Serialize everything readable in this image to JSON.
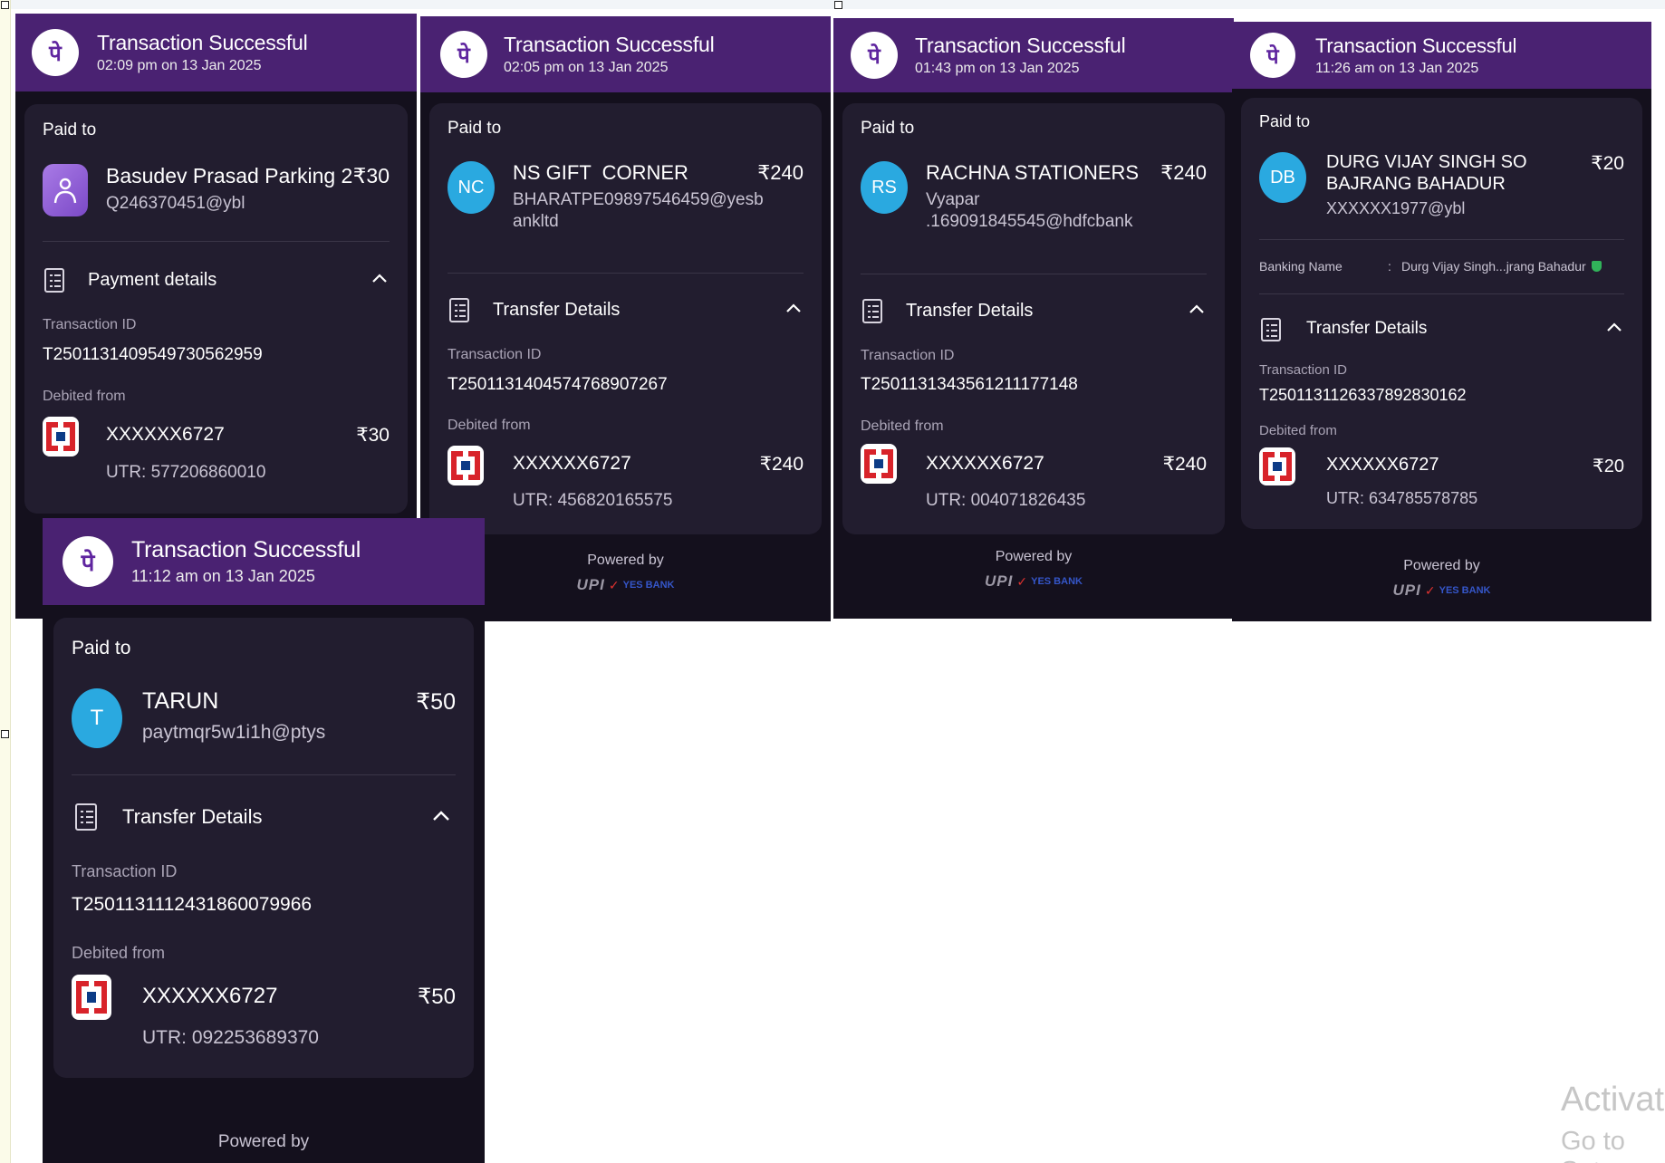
{
  "logo_glyph": "पे",
  "currency": "₹",
  "brand_colors": {
    "header": "#4a2272",
    "panel": "#14101d",
    "card": "#221d2f",
    "avatar_blue": "#2aa9e0"
  },
  "panels": [
    {
      "title": "Transaction Successful",
      "time": "02:09 pm on 13 Jan 2025",
      "paid_to_label": "Paid to",
      "payee_name": "Basudev Prasad Parking 2",
      "payee_id": "Q246370451@ybl",
      "amount": "₹30",
      "avatar_icon": "person-icon",
      "details_label": "Payment details",
      "txn_id_label": "Transaction ID",
      "txn_id": "T2501131409549730562959",
      "debited_label": "Debited from",
      "account": "XXXXXX6727",
      "debit_amount": "₹30",
      "utr": "UTR: 577206860010"
    },
    {
      "title": "Transaction Successful",
      "time": "02:05 pm on 13 Jan 2025",
      "paid_to_label": "Paid to",
      "payee_name": "NS GIFT  CORNER",
      "payee_id_line1": "BHARATPE09897546459@yesb",
      "payee_id_line2": "ankltd",
      "amount": "₹240",
      "initials": "NC",
      "details_label": "Transfer Details",
      "txn_id_label": "Transaction ID",
      "txn_id": "T2501131404574768907267",
      "debited_label": "Debited from",
      "account": "XXXXXX6727",
      "debit_amount": "₹240",
      "utr": "UTR: 456820165575",
      "powered_by": "Powered by",
      "upi": "UPI",
      "bank_name": "YES BANK"
    },
    {
      "title": "Transaction Successful",
      "time": "01:43 pm on 13 Jan 2025",
      "paid_to_label": "Paid to",
      "payee_name": "RACHNA STATIONERS",
      "payee_id_line1": "Vyapar",
      "payee_id_line2": ".169091845545@hdfcbank",
      "amount": "₹240",
      "initials": "RS",
      "details_label": "Transfer Details",
      "txn_id_label": "Transaction ID",
      "txn_id": "T2501131343561211177148",
      "debited_label": "Debited from",
      "account": "XXXXXX6727",
      "debit_amount": "₹240",
      "utr": "UTR: 004071826435",
      "powered_by": "Powered by",
      "upi": "UPI",
      "bank_name": "YES BANK"
    },
    {
      "title": "Transaction Successful",
      "time": "11:26 am on 13 Jan 2025",
      "paid_to_label": "Paid to",
      "payee_name_line1": "DURG VIJAY SINGH SO",
      "payee_name_line2": "BAJRANG BAHADUR",
      "payee_id": "XXXXXX1977@ybl",
      "amount": "₹20",
      "initials": "DB",
      "banking_name_label": "Banking Name",
      "banking_name_sep": ":",
      "banking_name": "Durg Vijay Singh...jrang Bahadur",
      "details_label": "Transfer Details",
      "txn_id_label": "Transaction ID",
      "txn_id": "T2501131126337892830162",
      "debited_label": "Debited from",
      "account": "XXXXXX6727",
      "debit_amount": "₹20",
      "utr": "UTR: 634785578785",
      "powered_by": "Powered by",
      "upi": "UPI",
      "bank_name": "YES BANK"
    },
    {
      "title": "Transaction Successful",
      "time": "11:12 am on 13 Jan 2025",
      "paid_to_label": "Paid to",
      "payee_name": "TARUN",
      "payee_id": "paytmqr5w1i1h@ptys",
      "amount": "₹50",
      "initials": "T",
      "details_label": "Transfer Details",
      "txn_id_label": "Transaction ID",
      "txn_id": "T2501131112431860079966",
      "debited_label": "Debited from",
      "account": "XXXXXX6727",
      "debit_amount": "₹50",
      "utr": "UTR: 092253689370",
      "powered_by": "Powered by"
    }
  ],
  "watermark": {
    "line1": "Activat",
    "line2": "Go to Set"
  }
}
